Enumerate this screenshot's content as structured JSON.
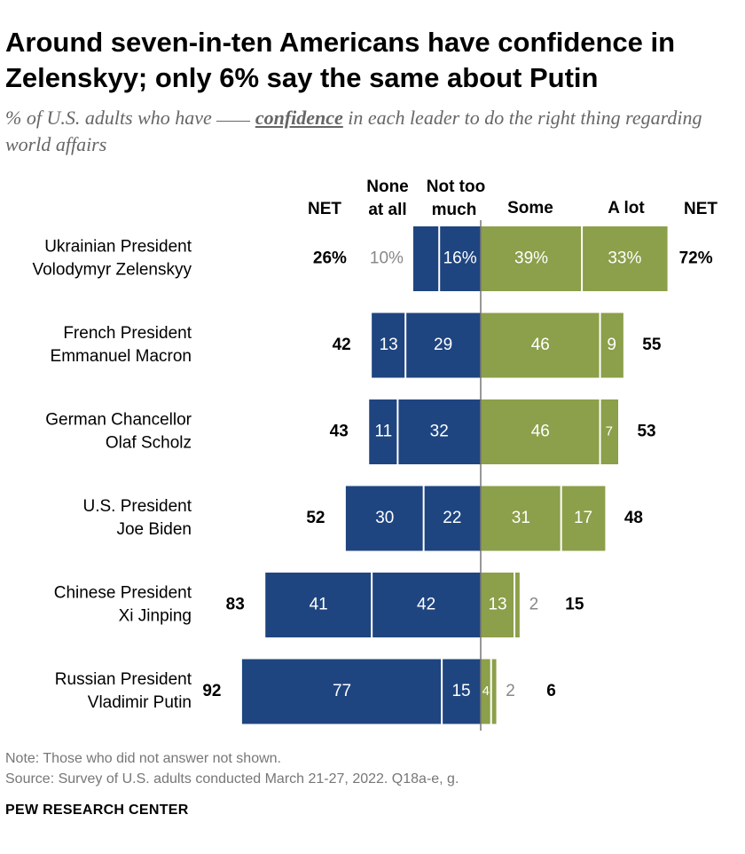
{
  "title": "Around seven-in-ten Americans have confidence in Zelenskyy; only 6% say the same about Putin",
  "subtitle": {
    "before": "% of U.S. adults who have",
    "emphasis": "confidence",
    "after": "in each leader to do the right thing regarding world affairs"
  },
  "chart_data": {
    "type": "bar",
    "orientation": "diverging-horizontal",
    "column_headers": {
      "net_negative": "NET",
      "none_at_all": [
        "None",
        "at all"
      ],
      "not_too_much": [
        "Not too",
        "much"
      ],
      "some": "Some",
      "a_lot": "A lot",
      "net_positive": "NET"
    },
    "categories": [
      [
        "Ukrainian President",
        "Volodymyr Zelenskyy"
      ],
      [
        "French President",
        "Emmanuel Macron"
      ],
      [
        "German Chancellor",
        "Olaf Scholz"
      ],
      [
        "U.S. President",
        "Joe Biden"
      ],
      [
        "Chinese President",
        "Xi Jinping"
      ],
      [
        "Russian President",
        "Vladimir Putin"
      ]
    ],
    "series": [
      {
        "name": "None at all",
        "color": "#1f4580",
        "values": [
          10,
          13,
          11,
          30,
          41,
          77
        ]
      },
      {
        "name": "Not too much",
        "color": "#1f4580",
        "values": [
          16,
          29,
          32,
          22,
          42,
          15
        ]
      },
      {
        "name": "Some",
        "color": "#8c9f4a",
        "values": [
          39,
          46,
          46,
          31,
          13,
          4
        ]
      },
      {
        "name": "A lot",
        "color": "#8c9f4a",
        "values": [
          33,
          9,
          7,
          17,
          2,
          2
        ]
      }
    ],
    "net_negative": [
      26,
      42,
      43,
      52,
      83,
      92
    ],
    "net_positive": [
      72,
      55,
      53,
      48,
      15,
      6
    ],
    "first_row_percent": true,
    "value_unit": "%"
  },
  "note": "Note: Those who did not answer not shown.",
  "source": "Source: Survey of U.S. adults conducted March 21-27, 2022. Q18a-e, g.",
  "footer": "PEW RESEARCH CENTER",
  "colors": {
    "negative": "#1f4580",
    "positive": "#8c9f4a",
    "outside_label": "#888888"
  }
}
